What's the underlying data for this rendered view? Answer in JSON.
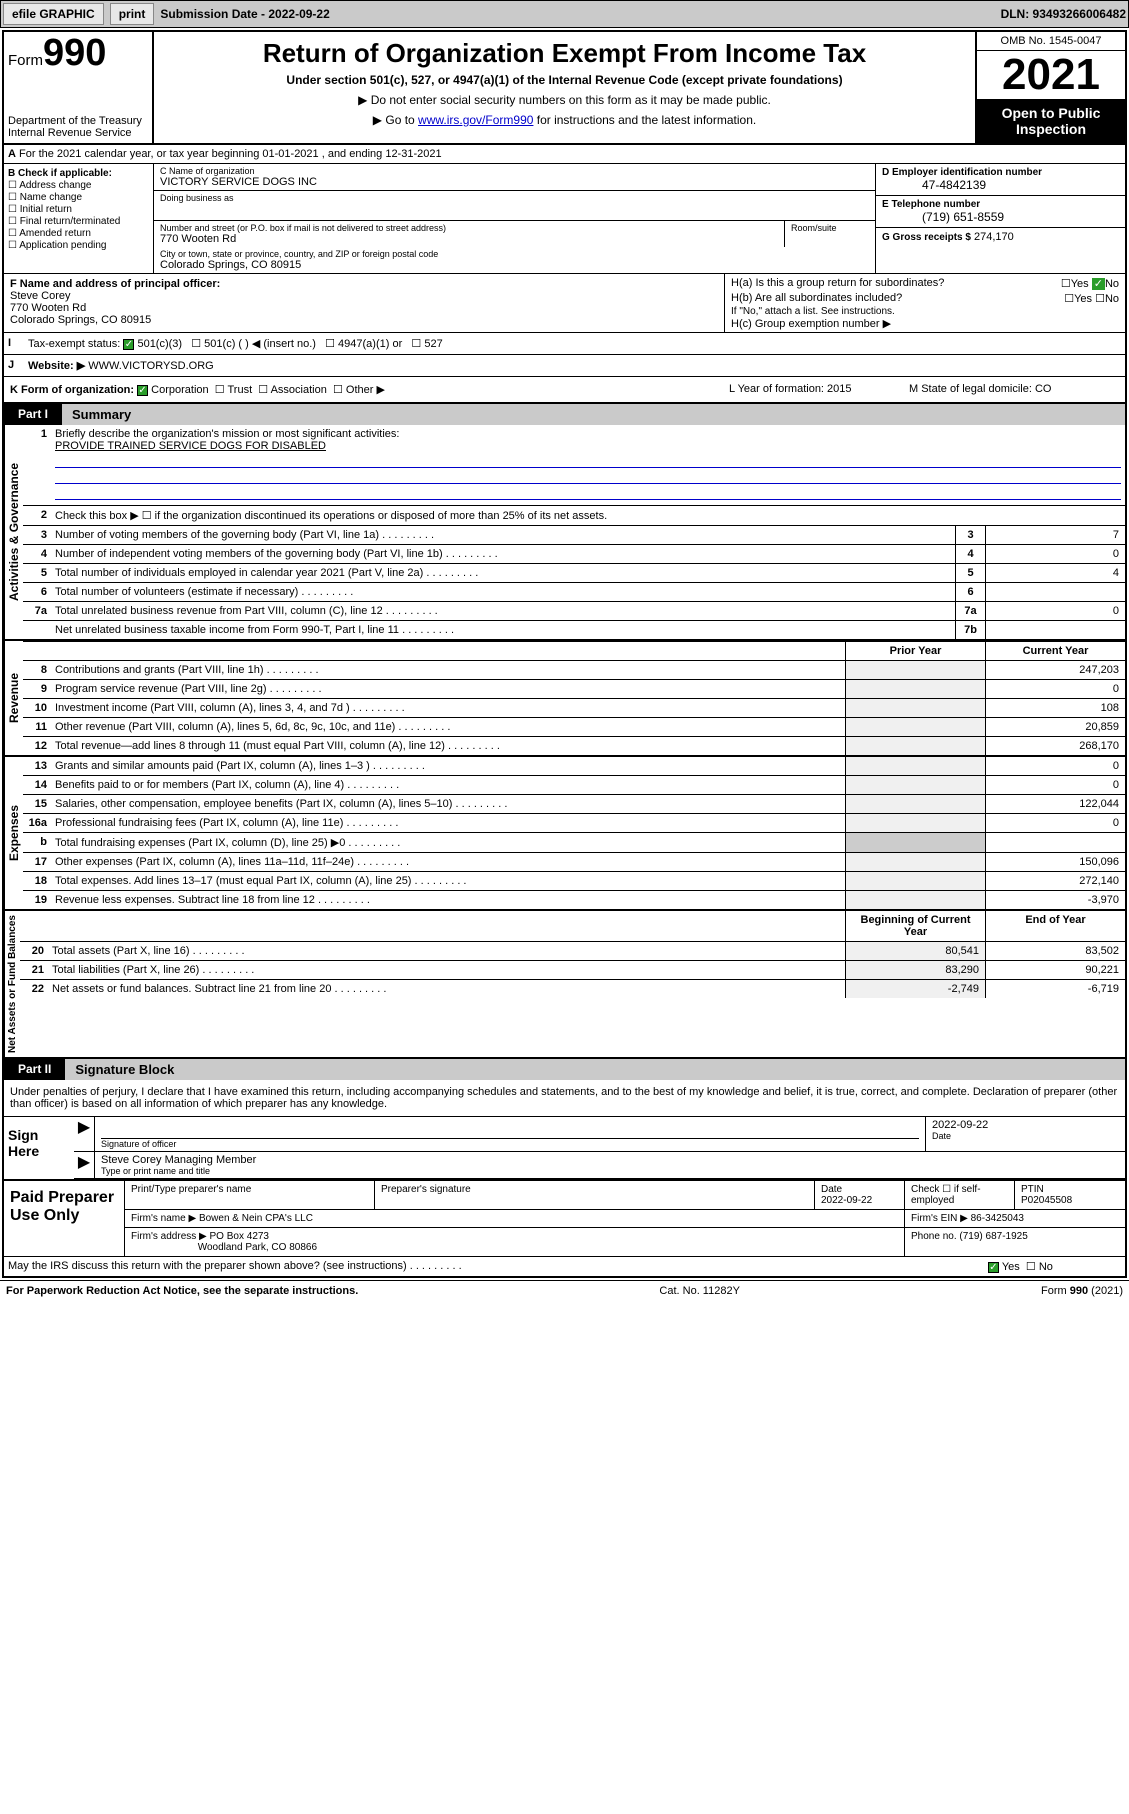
{
  "toolbar": {
    "efile": "efile GRAPHIC",
    "print": "print",
    "sub_label": "Submission Date - 2022-09-22",
    "dln": "DLN: 93493266006482"
  },
  "header": {
    "form_word": "Form",
    "form_num": "990",
    "dept": "Department of the Treasury\nInternal Revenue Service",
    "title": "Return of Organization Exempt From Income Tax",
    "subtitle": "Under section 501(c), 527, or 4947(a)(1) of the Internal Revenue Code (except private foundations)",
    "note1": "▶ Do not enter social security numbers on this form as it may be made public.",
    "note2_pre": "▶ Go to ",
    "note2_link": "www.irs.gov/Form990",
    "note2_post": " for instructions and the latest information.",
    "omb": "OMB No. 1545-0047",
    "year": "2021",
    "open": "Open to Public Inspection"
  },
  "lineA": "For the 2021 calendar year, or tax year beginning 01-01-2021 , and ending 12-31-2021",
  "boxB": {
    "title": "B Check if applicable:",
    "items": [
      "Address change",
      "Name change",
      "Initial return",
      "Final return/terminated",
      "Amended return",
      "Application pending"
    ]
  },
  "boxC": {
    "name_label": "C Name of organization",
    "name": "VICTORY SERVICE DOGS INC",
    "dba_label": "Doing business as",
    "addr_label": "Number and street (or P.O. box if mail is not delivered to street address)",
    "room_label": "Room/suite",
    "addr": "770 Wooten Rd",
    "city_label": "City or town, state or province, country, and ZIP or foreign postal code",
    "city": "Colorado Springs, CO  80915"
  },
  "boxD": {
    "label": "D Employer identification number",
    "val": "47-4842139"
  },
  "boxE": {
    "label": "E Telephone number",
    "val": "(719) 651-8559"
  },
  "boxG": {
    "label": "G Gross receipts $",
    "val": "274,170"
  },
  "boxF": {
    "label": "F Name and address of principal officer:",
    "name": "Steve Corey",
    "addr1": "770 Wooten Rd",
    "addr2": "Colorado Springs, CO  80915"
  },
  "boxH": {
    "a": "H(a) Is this a group return for subordinates?",
    "b": "H(b) Are all subordinates included?",
    "note": "If \"No,\" attach a list. See instructions.",
    "c": "H(c) Group exemption number ▶",
    "yes": "Yes",
    "no": "No"
  },
  "rowI": {
    "lab": "I",
    "title": "Tax-exempt status:",
    "opt1": "501(c)(3)",
    "opt2": "501(c) ( ) ◀ (insert no.)",
    "opt3": "4947(a)(1) or",
    "opt4": "527"
  },
  "rowJ": {
    "lab": "J",
    "title": "Website: ▶",
    "val": "WWW.VICTORYSD.ORG"
  },
  "rowK": {
    "lab": "K Form of organization:",
    "opts": [
      "Corporation",
      "Trust",
      "Association",
      "Other ▶"
    ],
    "L": "L Year of formation: 2015",
    "M": "M State of legal domicile: CO"
  },
  "part1": {
    "num": "Part I",
    "title": "Summary",
    "side1": "Activities & Governance",
    "side2": "Revenue",
    "side3": "Expenses",
    "side4": "Net Assets or Fund Balances",
    "q1": "Briefly describe the organization's mission or most significant activities:",
    "q1a": "PROVIDE TRAINED SERVICE DOGS FOR DISABLED",
    "q2": "Check this box ▶ ☐ if the organization discontinued its operations or disposed of more than 25% of its net assets.",
    "rows_gov": [
      {
        "n": "3",
        "t": "Number of voting members of the governing body (Part VI, line 1a)",
        "b": "3",
        "v": "7"
      },
      {
        "n": "4",
        "t": "Number of independent voting members of the governing body (Part VI, line 1b)",
        "b": "4",
        "v": "0"
      },
      {
        "n": "5",
        "t": "Total number of individuals employed in calendar year 2021 (Part V, line 2a)",
        "b": "5",
        "v": "4"
      },
      {
        "n": "6",
        "t": "Total number of volunteers (estimate if necessary)",
        "b": "6",
        "v": ""
      },
      {
        "n": "7a",
        "t": "Total unrelated business revenue from Part VIII, column (C), line 12",
        "b": "7a",
        "v": "0"
      },
      {
        "n": "",
        "t": "Net unrelated business taxable income from Form 990-T, Part I, line 11",
        "b": "7b",
        "v": ""
      }
    ],
    "col_prior": "Prior Year",
    "col_curr": "Current Year",
    "rows_rev": [
      {
        "n": "8",
        "t": "Contributions and grants (Part VIII, line 1h)",
        "p": "",
        "v": "247,203"
      },
      {
        "n": "9",
        "t": "Program service revenue (Part VIII, line 2g)",
        "p": "",
        "v": "0"
      },
      {
        "n": "10",
        "t": "Investment income (Part VIII, column (A), lines 3, 4, and 7d )",
        "p": "",
        "v": "108"
      },
      {
        "n": "11",
        "t": "Other revenue (Part VIII, column (A), lines 5, 6d, 8c, 9c, 10c, and 11e)",
        "p": "",
        "v": "20,859"
      },
      {
        "n": "12",
        "t": "Total revenue—add lines 8 through 11 (must equal Part VIII, column (A), line 12)",
        "p": "",
        "v": "268,170"
      }
    ],
    "rows_exp": [
      {
        "n": "13",
        "t": "Grants and similar amounts paid (Part IX, column (A), lines 1–3 )",
        "p": "",
        "v": "0"
      },
      {
        "n": "14",
        "t": "Benefits paid to or for members (Part IX, column (A), line 4)",
        "p": "",
        "v": "0"
      },
      {
        "n": "15",
        "t": "Salaries, other compensation, employee benefits (Part IX, column (A), lines 5–10)",
        "p": "",
        "v": "122,044"
      },
      {
        "n": "16a",
        "t": "Professional fundraising fees (Part IX, column (A), line 11e)",
        "p": "",
        "v": "0"
      },
      {
        "n": "b",
        "t": "Total fundraising expenses (Part IX, column (D), line 25) ▶0",
        "p": "shade",
        "v": "shade"
      },
      {
        "n": "17",
        "t": "Other expenses (Part IX, column (A), lines 11a–11d, 11f–24e)",
        "p": "",
        "v": "150,096"
      },
      {
        "n": "18",
        "t": "Total expenses. Add lines 13–17 (must equal Part IX, column (A), line 25)",
        "p": "",
        "v": "272,140"
      },
      {
        "n": "19",
        "t": "Revenue less expenses. Subtract line 18 from line 12",
        "p": "",
        "v": "-3,970"
      }
    ],
    "col_begin": "Beginning of Current Year",
    "col_end": "End of Year",
    "rows_net": [
      {
        "n": "20",
        "t": "Total assets (Part X, line 16)",
        "p": "80,541",
        "v": "83,502"
      },
      {
        "n": "21",
        "t": "Total liabilities (Part X, line 26)",
        "p": "83,290",
        "v": "90,221"
      },
      {
        "n": "22",
        "t": "Net assets or fund balances. Subtract line 21 from line 20",
        "p": "-2,749",
        "v": "-6,719"
      }
    ]
  },
  "part2": {
    "num": "Part II",
    "title": "Signature Block",
    "declare": "Under penalties of perjury, I declare that I have examined this return, including accompanying schedules and statements, and to the best of my knowledge and belief, it is true, correct, and complete. Declaration of preparer (other than officer) is based on all information of which preparer has any knowledge.",
    "sign_here": "Sign Here",
    "sig_officer": "Signature of officer",
    "sig_date": "Date",
    "sig_date_val": "2022-09-22",
    "name_title": "Steve Corey  Managing Member",
    "name_label": "Type or print name and title",
    "paid": "Paid Preparer Use Only",
    "prep_name_label": "Print/Type preparer's name",
    "prep_sig_label": "Preparer's signature",
    "prep_date_label": "Date",
    "prep_date": "2022-09-22",
    "prep_check": "Check ☐ if self-employed",
    "ptin_label": "PTIN",
    "ptin": "P02045508",
    "firm_name_label": "Firm's name    ▶",
    "firm_name": "Bowen & Nein CPA's LLC",
    "firm_ein_label": "Firm's EIN ▶",
    "firm_ein": "86-3425043",
    "firm_addr_label": "Firm's address ▶",
    "firm_addr1": "PO Box 4273",
    "firm_addr2": "Woodland Park, CO  80866",
    "phone_label": "Phone no.",
    "phone": "(719) 687-1925",
    "may_irs": "May the IRS discuss this return with the preparer shown above? (see instructions)",
    "yes": "Yes",
    "no": "No"
  },
  "footer": {
    "left": "For Paperwork Reduction Act Notice, see the separate instructions.",
    "mid": "Cat. No. 11282Y",
    "right": "Form 990 (2021)"
  },
  "colors": {
    "link": "#0000cc",
    "toolbar_bg": "#cacaca",
    "check_green": "#2a9d2a"
  }
}
